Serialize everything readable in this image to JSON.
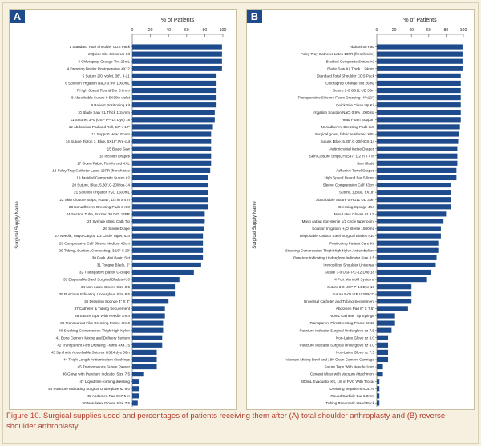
{
  "caption": {
    "figure_label": "Figure 10.",
    "text": "Surgical supplies used and percentages of patients receiving them after (A) total shoulder arthroplasty and (B) reverse shoulder arthroplasty."
  },
  "colors": {
    "bar": "#1d4b8c",
    "badge": "#1d4b8c",
    "background": "#f6f0e1"
  },
  "chart_data": [
    {
      "type": "bar",
      "orientation": "horizontal",
      "panel_label": "A",
      "title": "% of Patients",
      "ylabel": "Surgical Supply Name",
      "xlim": [
        0,
        100
      ],
      "xticks": [
        0,
        20,
        40,
        60,
        80,
        100
      ],
      "categories": [
        "1 Standard Total Shoulder CDS Pack",
        "2 Quick Site Clean Up Kit",
        "3 Chloraprep Orange Tint 26mL",
        "4 Dressing Border Postoperative 4X12",
        "5 Suture 2/0, violet, 36\", 4-21",
        "6 Solution Irrigation NaCl 0.9% 1000mL",
        "7 High Speed Round Bur 5.0mm",
        "8 Absorbable Suture 0 5X30in violet",
        "9 Patient Positioning Kit",
        "10 Blade Saw XL Thick 1.24mm",
        "11 Sutures 3–0 (USP P—14 Dye) 18",
        "12 Abdominal Pad and Roll, 16\" x 12\"",
        "13 Support Head Foam",
        "14 Suture Ticron 1, Blue, 6X18\",Pre-cut",
        "15 Blade Saw",
        "16 Incision Drapes",
        "17 Gown Fabric Reinforced XXL",
        "18 Foley Tray Catheter Latex 16FR (french size",
        "19 Braided Composite Suture #2",
        "20 Suture, Blue, 5,30\",C-20/Hos-14",
        "21 Solution Irrigation H₂O 1500mL",
        "22 Skin Closure Strips, H1547, 1/2 in x 4 in",
        "23 Nonadherent Dressing Pads 3 X 8",
        "24 Suction Tube, Frazier, 30 DG, 12FR",
        "25 Syringe 60mL Cath Tip",
        "26 Sterile Drape",
        "27 Needle, Mayo Catgut, 1/2 Circle Taper, sz4",
        "28 Compressive Calf Sleeve Medium 43cm",
        "29 Tubing, Suction, Connecting, 3/16\" X 20'",
        "30 Pack Mini Basin Set",
        "31 Tongue Blade, 6\"",
        "32 Transparent plastic U-drape",
        "33 Disposable Steel Surgical Blades #10",
        "34 Non-Latex Gloves Size 8.5",
        "35 Puncture Indicating Underglove Size 8.5",
        "36 Dressing Sponge 4\" X 4\"",
        "37 Catheter & Tubing Securement",
        "38 Suture Tape With Needle 3mm",
        "39 Transparent Film Dressing Frame 4X10",
        "40 Stocking Compression Thigh High Nylon",
        "41 Bone Cement Mixing and Delivery System",
        "42 Transparent Film Dressing Frame 4X4.75",
        "43 Synthetic Absorbable Sutures GS24 dye 36in",
        "44 Thigh Length Antiembolism Stockings",
        "45 Transosseous Suture Passer",
        "46 Glove with Puncture Indicator Size 7.5",
        "47 Liquid film-forming dressing",
        "48 Puncture Indicating Surgical Underglove sz 8.0",
        "49 Abdomen Pad 8X7.5 in",
        "50 Non-latex Gloves Size 7.5"
      ],
      "values": [
        99,
        99,
        99,
        99,
        93,
        93,
        93,
        93,
        93,
        91,
        91,
        89,
        87,
        87,
        87,
        87,
        87,
        86,
        84,
        84,
        84,
        84,
        84,
        80,
        80,
        79,
        78,
        78,
        78,
        78,
        76,
        68,
        52,
        47,
        47,
        40,
        36,
        36,
        34,
        34,
        33,
        33,
        27,
        27,
        27,
        13,
        8,
        8,
        8,
        6
      ]
    },
    {
      "type": "bar",
      "orientation": "horizontal",
      "panel_label": "B",
      "title": "% of Patients",
      "ylabel": "Surgical Supply Name",
      "xlim": [
        0,
        100
      ],
      "xticks": [
        0,
        20,
        40,
        60,
        80,
        100
      ],
      "categories": [
        "Abdominal Pad",
        "Foley Tray Catheter Latex 16FR (french size)",
        "Braided Composite Suture #2",
        "Blade Saw XL Thick 1.24mm",
        "Standard Total Shoulder CDS Pack",
        "Chloraprep Orange Tint 26mL",
        "Suture 2-0 GS11 UD 30in",
        "Postoperative Silicone Foam Dressing (4\"x12\")",
        "Quick Site Clean Up Kit",
        "Irrigation Solution NaCl 0.9% 1000mL",
        "Head Foam Support",
        "Nonadherent Dressing Pads 3x8",
        "Surgical gown, fabric reinforced XXL",
        "Suture, Blue, 5,30\",C-20/HOS-14",
        "Antimicrobial Incise Drapes",
        "Skin Closure Strips, H1547, 1/2 in x 4 in",
        "Saw Blade",
        "Adhesive Towel Drapes",
        "High Speed Round Bur 5.0mm",
        "Sleeve Compression Calf 43cm",
        "Suture, 1,Blue, 6X18\"",
        "Absorbable Suture 0 HG11 UD 30in",
        "Dressing Sponge 4X4",
        "Non-Latex Gloves sz 8.5",
        "Mayo catgut non-sterile 1/2 circle taper point",
        "Solution Irrigation H₂O Sterile 1500mL",
        "Disposable Carbon Steel Surgical Blades #10",
        "Positioning Patient Care Kit",
        "Stocking Compression Thigh High Nylon Antiembolism",
        "Puncture Indicating Underglove Indicator Size 8.5",
        "Immobilizer Shoulder Universal",
        "Suture 3-0 USP PC-12 Dye 18",
        "4 Port Manifold Systems",
        "Suture 3-0 USP P-14 Dye 18",
        "Suture 5-0 USP V 30BCC",
        "Universal Catheter and Tubing Securement",
        "Abdomen Pad 8\" X 7.5\"",
        "60mL Catheter Tip Syringe",
        "Transparent Film Dressing Frame 4X10",
        "Puncture Indicator Surgical Underglove sz 7.5",
        "Non-Latex Glove sz 8.0",
        "Puncture Indicator Surgical Underglove sz 8.0",
        "Non-Latex Glove sz 7.5",
        "Vacuum Mixing Bowl and 180 Gram Cement Cartridge",
        "Suture Tape With Needle 1mm",
        "Cement Mixer with Vacuum Attachment",
        "400mL Evacuator Kit, 1/8 in PVC With Trocar",
        "Dressing Tegaderm 4X4.75",
        "Round Carbide Bur 5.0mm",
        "Tubing Pneumatic Hand Pack"
      ],
      "values": [
        99,
        99,
        99,
        99,
        97,
        97,
        97,
        97,
        97,
        97,
        97,
        96,
        95,
        94,
        93,
        93,
        93,
        92,
        92,
        86,
        86,
        86,
        86,
        80,
        77,
        74,
        74,
        71,
        71,
        69,
        68,
        63,
        58,
        40,
        40,
        40,
        36,
        21,
        21,
        17,
        13,
        13,
        13,
        13,
        7,
        7,
        3,
        3,
        3,
        3
      ]
    }
  ]
}
